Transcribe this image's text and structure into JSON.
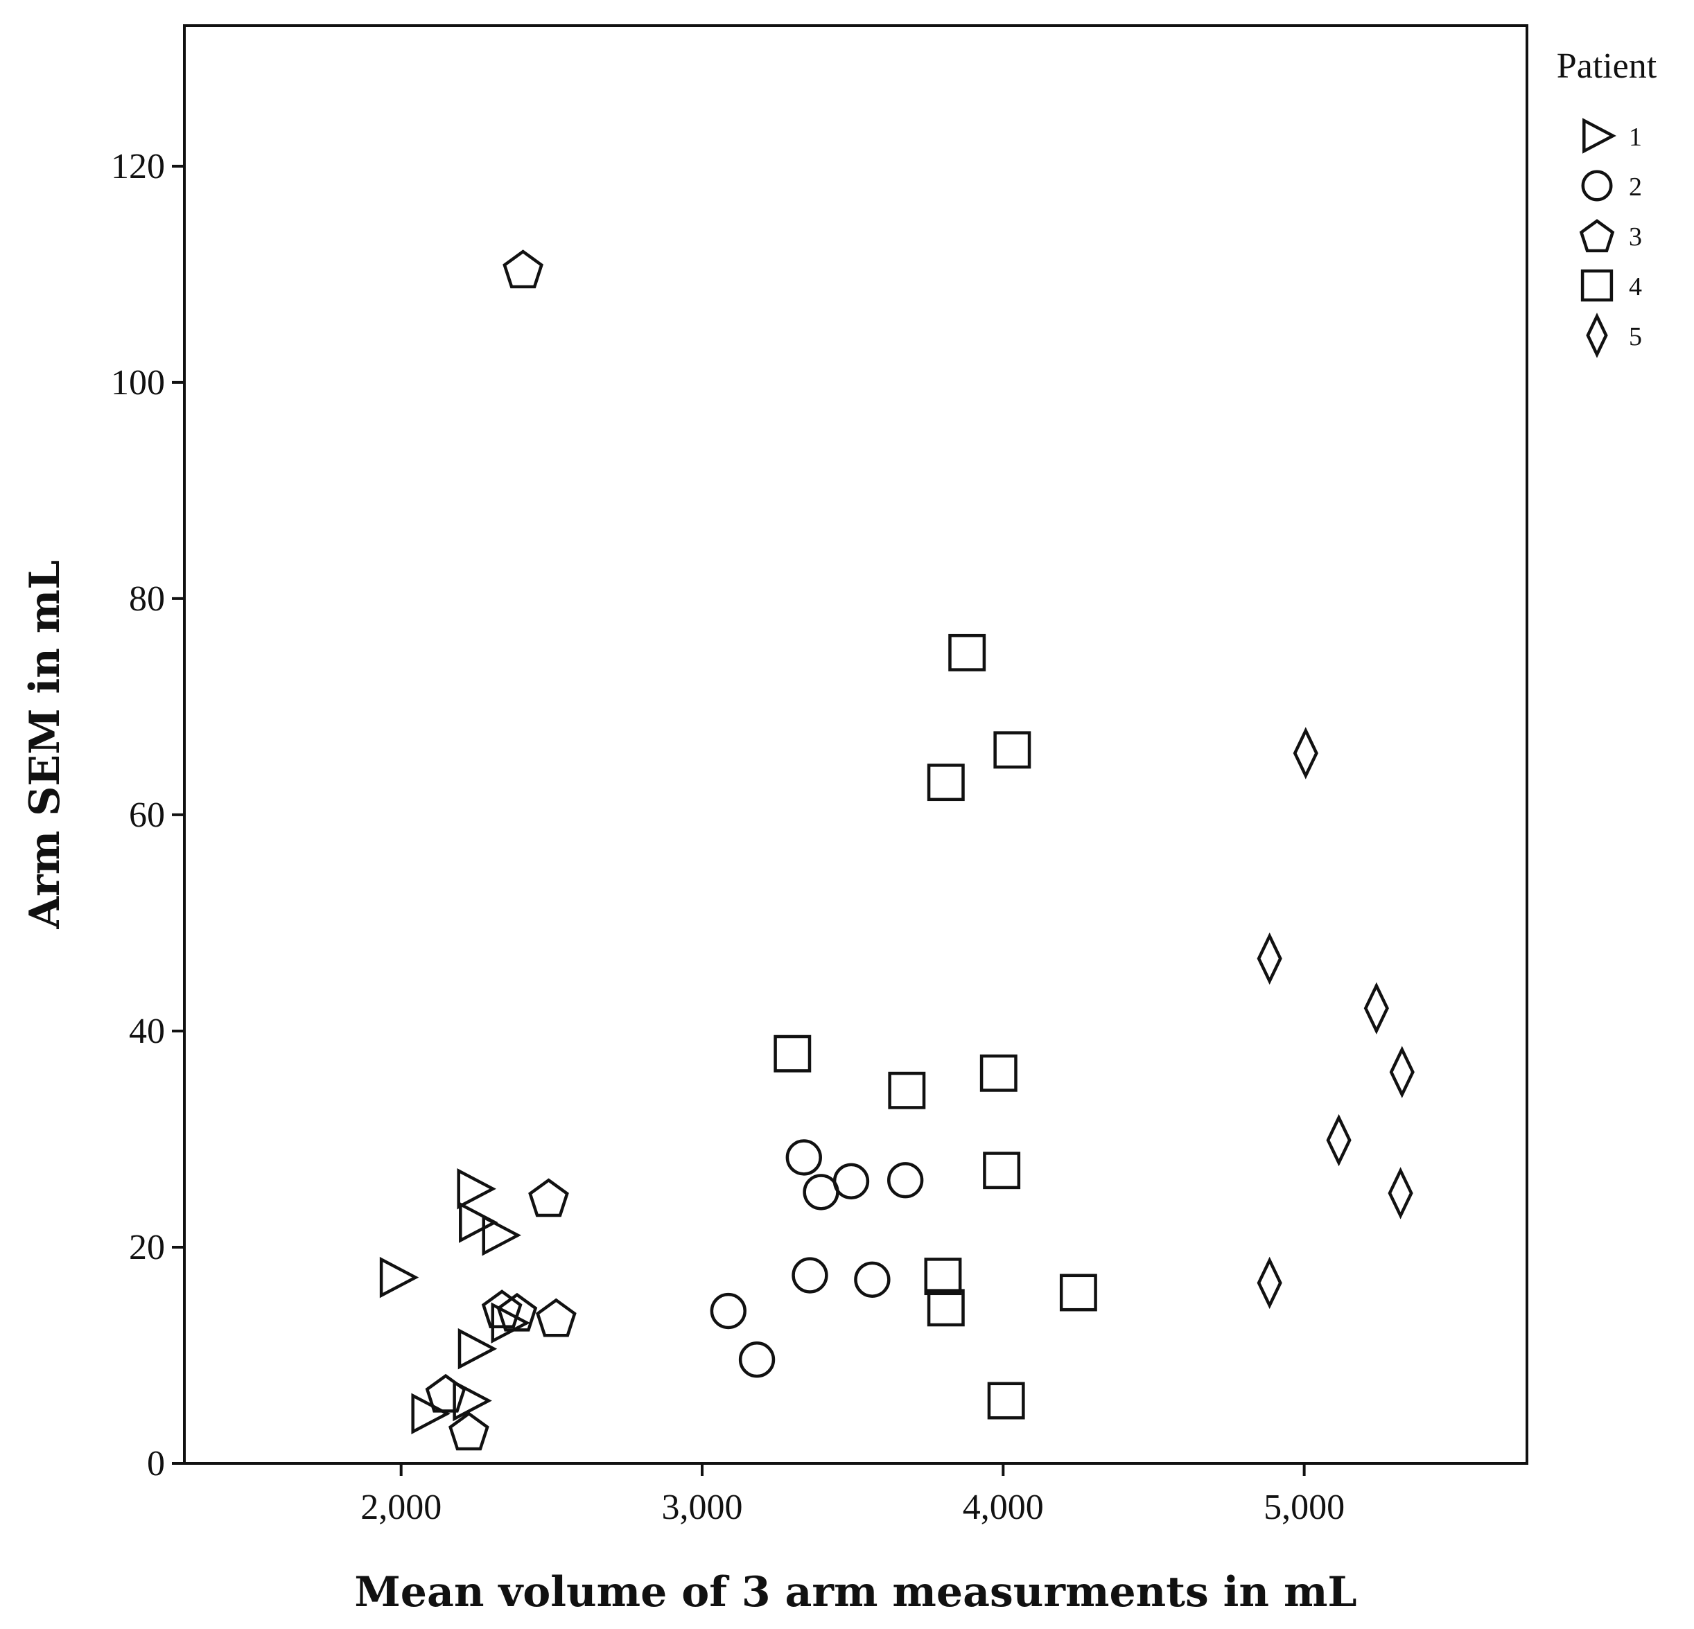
{
  "chart_data": {
    "type": "scatter",
    "title": "",
    "xlabel": "Mean volume of 3 arm measurments in mL",
    "ylabel": "Arm SEM in mL",
    "xlim": [
      1280,
      5740
    ],
    "ylim": [
      0,
      133
    ],
    "x_ticks": [
      {
        "value": 2000,
        "label": "2,000"
      },
      {
        "value": 3000,
        "label": "3,000"
      },
      {
        "value": 4000,
        "label": "4,000"
      },
      {
        "value": 5000,
        "label": "5,000"
      }
    ],
    "y_ticks": [
      {
        "value": 0,
        "label": "0"
      },
      {
        "value": 20,
        "label": "20"
      },
      {
        "value": 40,
        "label": "40"
      },
      {
        "value": 60,
        "label": "60"
      },
      {
        "value": 80,
        "label": "80"
      },
      {
        "value": 100,
        "label": "100"
      },
      {
        "value": 120,
        "label": "120"
      }
    ],
    "grid": false,
    "legend": {
      "title": "Patient",
      "position": "right"
    },
    "series": [
      {
        "name": "1",
        "marker": "triangle-right",
        "points": [
          {
            "x": 1985,
            "y": 17.2
          },
          {
            "x": 2242,
            "y": 25.4
          },
          {
            "x": 2248,
            "y": 22.3
          },
          {
            "x": 2325,
            "y": 21.1
          },
          {
            "x": 2245,
            "y": 10.6
          },
          {
            "x": 2090,
            "y": 4.6
          },
          {
            "x": 2228,
            "y": 5.8
          },
          {
            "x": 2355,
            "y": 13.0
          }
        ]
      },
      {
        "name": "2",
        "marker": "circle",
        "points": [
          {
            "x": 3338,
            "y": 28.3
          },
          {
            "x": 3395,
            "y": 25.1
          },
          {
            "x": 3495,
            "y": 26.1
          },
          {
            "x": 3675,
            "y": 26.2
          },
          {
            "x": 3358,
            "y": 17.4
          },
          {
            "x": 3565,
            "y": 17.0
          },
          {
            "x": 3087,
            "y": 14.1
          },
          {
            "x": 3182,
            "y": 9.6
          }
        ]
      },
      {
        "name": "3",
        "marker": "pentagon",
        "points": [
          {
            "x": 2405,
            "y": 110.5
          },
          {
            "x": 2490,
            "y": 24.6
          },
          {
            "x": 2515,
            "y": 13.5
          },
          {
            "x": 2335,
            "y": 14.3
          },
          {
            "x": 2385,
            "y": 14.0
          },
          {
            "x": 2148,
            "y": 6.5
          },
          {
            "x": 2225,
            "y": 3.0
          }
        ]
      },
      {
        "name": "4",
        "marker": "square",
        "points": [
          {
            "x": 3880,
            "y": 75.0
          },
          {
            "x": 4030,
            "y": 66.0
          },
          {
            "x": 3810,
            "y": 63.0
          },
          {
            "x": 3300,
            "y": 37.9
          },
          {
            "x": 3985,
            "y": 36.1
          },
          {
            "x": 3680,
            "y": 34.5
          },
          {
            "x": 3995,
            "y": 27.1
          },
          {
            "x": 3800,
            "y": 17.3
          },
          {
            "x": 3810,
            "y": 14.4
          },
          {
            "x": 4250,
            "y": 15.8
          },
          {
            "x": 4010,
            "y": 5.8
          }
        ]
      },
      {
        "name": "5",
        "marker": "diamond",
        "points": [
          {
            "x": 5005,
            "y": 65.7
          },
          {
            "x": 4885,
            "y": 46.7
          },
          {
            "x": 5240,
            "y": 42.1
          },
          {
            "x": 5325,
            "y": 36.2
          },
          {
            "x": 5115,
            "y": 29.9
          },
          {
            "x": 5320,
            "y": 25.0
          },
          {
            "x": 4885,
            "y": 16.7
          }
        ]
      }
    ]
  }
}
